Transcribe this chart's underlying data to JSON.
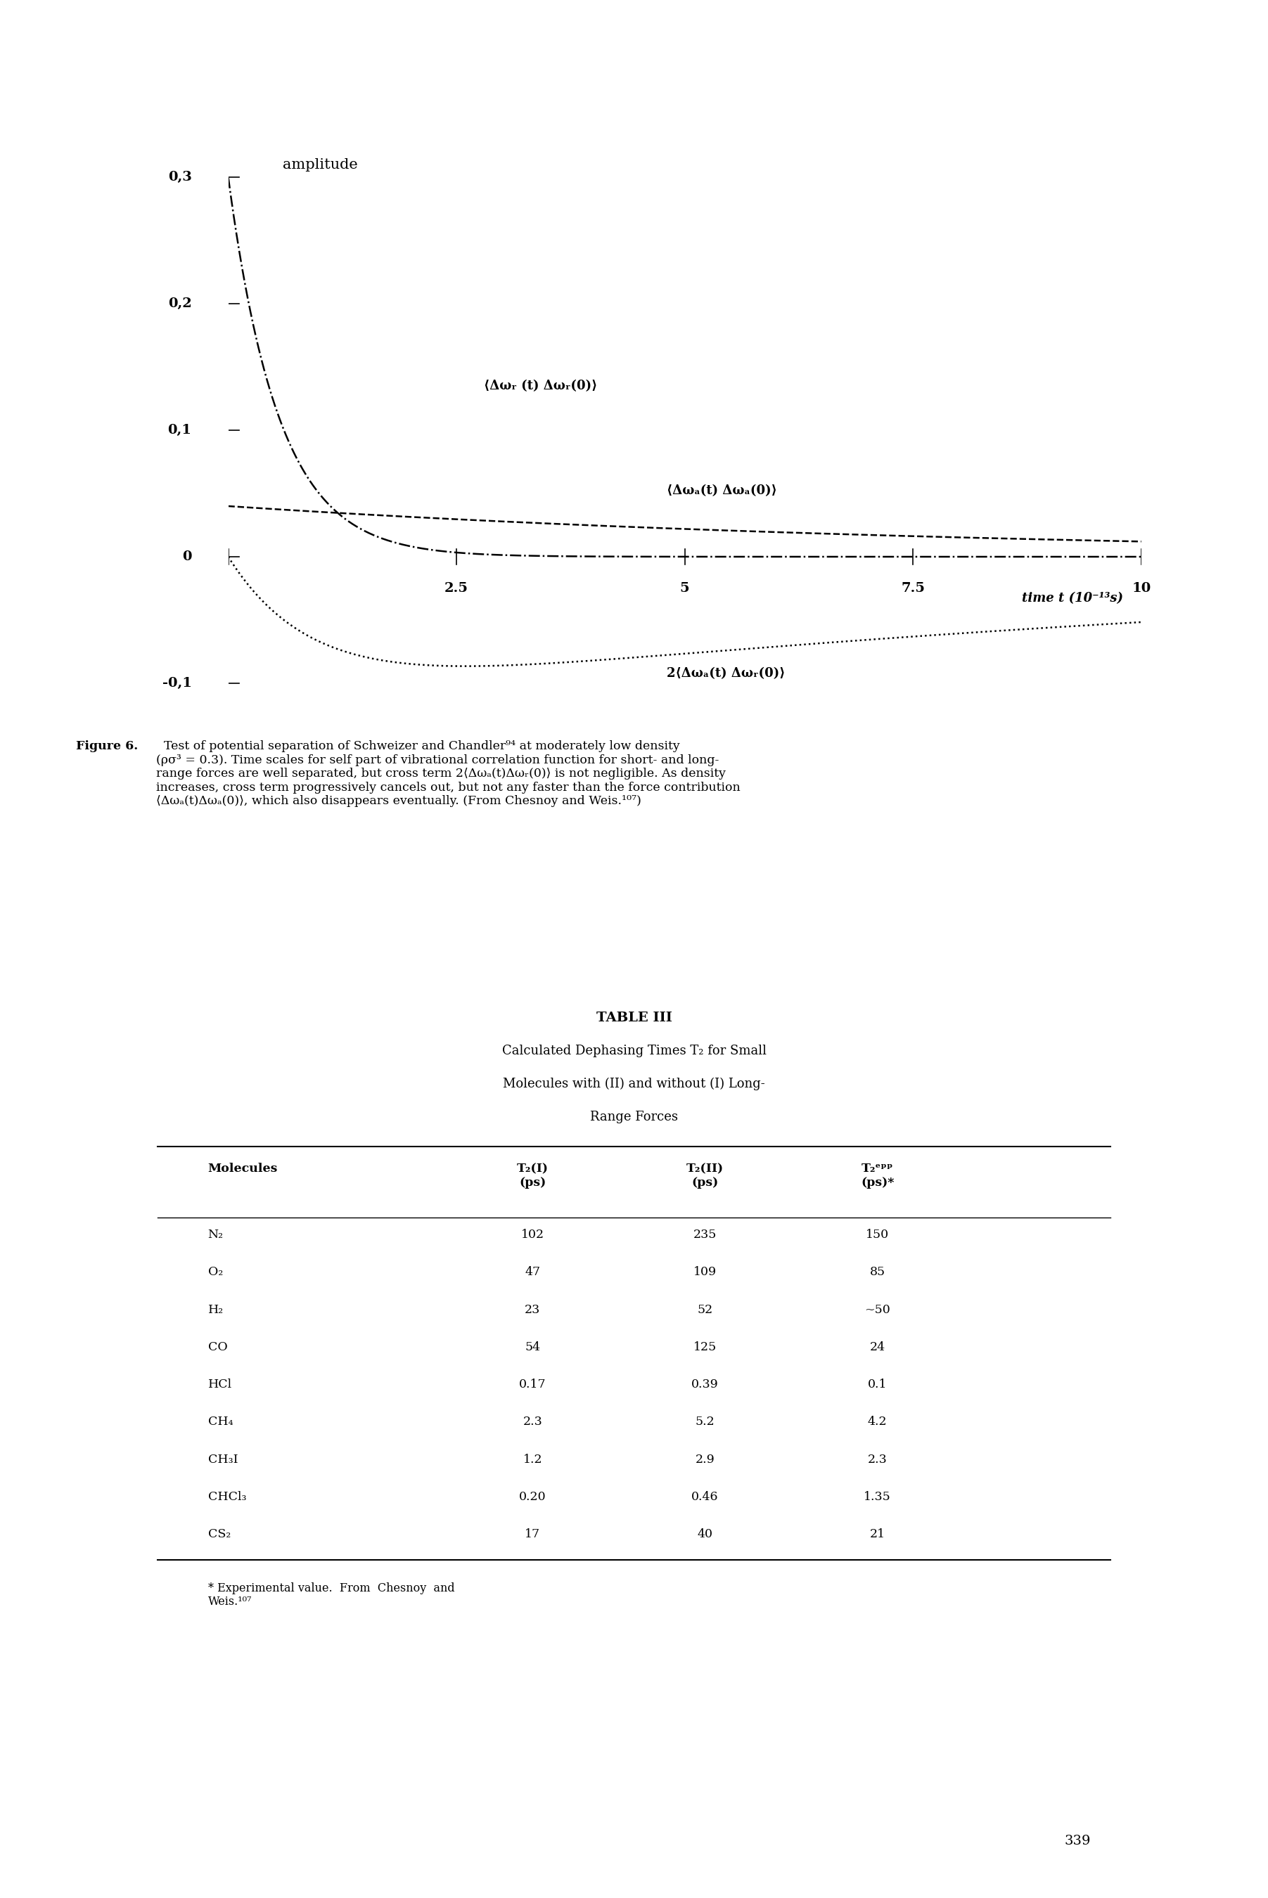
{
  "title": "amplitude",
  "xlabel": "time t (10⁻¹³s)",
  "ylabel": "",
  "xlim": [
    0,
    10
  ],
  "ylim": [
    -0.13,
    0.35
  ],
  "yticks": [
    -0.1,
    0,
    0.1,
    0.2,
    0.3
  ],
  "xticks": [
    0,
    2.5,
    5,
    7.5,
    10
  ],
  "curve1_label": "⟨Δωᵣ (t) Δωᵣ(0)⟩",
  "curve2_label": "⟨Δωₐ(t) Δωₐ(0)⟩",
  "curve3_label": "2⟨Δωₐ(t) Δωᵣ(0)⟩",
  "figure_caption_bold": "Figure 6.",
  "figure_caption_rest": "  Test of potential separation of Schweizer and Chandler⁹⁴ at moderately low density\n(ρσ³ = 0.3). Time scales for self part of vibrational correlation function for short- and long-\nrange forces are well separated, but cross term 2⟨Δωₐ(t)Δωᵣ(0)⟩ is not negligible. As density\nincreases, cross term progressively cancels out, but not any faster than the force contribution\n⟨Δωₐ(t)Δωₐ(0)⟩, which also disappears eventually. (From Chesnoy and Weis.¹⁰⁷)",
  "table_title": "TABLE III",
  "table_subtitle1": "Calculated Dephasing Times T₂ for Small",
  "table_subtitle2": "Molecules with (II) and without (I) Long-",
  "table_subtitle3": "Range Forces",
  "table_headers": [
    "Molecules",
    "T₂(I)\n(ps)",
    "T₂(II)\n(ps)",
    "T₂ᵉᵖᵖ\n(ps)*"
  ],
  "table_rows": [
    [
      "N₂",
      "102",
      "235",
      "150"
    ],
    [
      "O₂",
      "47",
      "109",
      "85"
    ],
    [
      "H₂",
      "23",
      "52",
      "~50"
    ],
    [
      "CO",
      "54",
      "125",
      "24"
    ],
    [
      "HCl",
      "0.17",
      "0.39",
      "0.1"
    ],
    [
      "CH₄",
      "2.3",
      "5.2",
      "4.2"
    ],
    [
      "CH₃I",
      "1.2",
      "2.9",
      "2.3"
    ],
    [
      "CHCl₃",
      "0.20",
      "0.46",
      "1.35"
    ],
    [
      "CS₂",
      "17",
      "40",
      "21"
    ]
  ],
  "table_footnote": "* Experimental value.  From  Chesnoy  and\nWeis.¹⁰⁷",
  "page_number": "339",
  "bg_color": "#ffffff",
  "text_color": "#000000"
}
